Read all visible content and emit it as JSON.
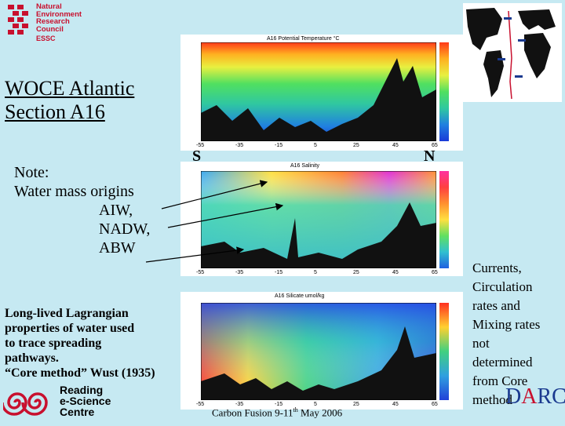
{
  "logo_nerc": {
    "line1": "Natural",
    "line2": "Environment",
    "line3": "Research",
    "line4": "Council",
    "sub": "ESSC"
  },
  "title": {
    "line1": "WOCE Atlantic",
    "line2": "Section A16"
  },
  "note": {
    "label": "Note:",
    "line2": "Water mass origins",
    "water_masses": [
      "AIW,",
      "NADW,",
      "ABW"
    ]
  },
  "lead_text": {
    "line1": "Long-lived Lagrangian",
    "line2": "properties of water used",
    "line3": "to trace spreading",
    "line4": "pathways.",
    "line5": "“Core method” Wust (1935)"
  },
  "right_text": {
    "lines": [
      "Currents,",
      "Circulation",
      "rates and",
      "Mixing rates",
      "not",
      "determined",
      "from Core",
      "method"
    ]
  },
  "panels": {
    "temperature_title": "A16 Potential Temperature °C",
    "salinity_title": "A16 Salinity",
    "silicate_title": "A16 Silicate umol/kg",
    "south_label": "S",
    "north_label": "N",
    "x_ticks": [
      "-55",
      "-35",
      "-15",
      "5",
      "25",
      "45",
      "65"
    ]
  },
  "footer": {
    "text": "Carbon Fusion 9-11",
    "superscript": "th",
    "text2": " May 2006"
  },
  "logo_reading": {
    "line1": "Reading",
    "line2": "e-Science",
    "line3": "Centre"
  },
  "logo_darc": {
    "d": "D",
    "a": "A",
    "rc": "RC"
  },
  "colors": {
    "background": "#c6e9f2",
    "nerc_red": "#c8102e",
    "darc_blue": "#1a3a8f"
  }
}
